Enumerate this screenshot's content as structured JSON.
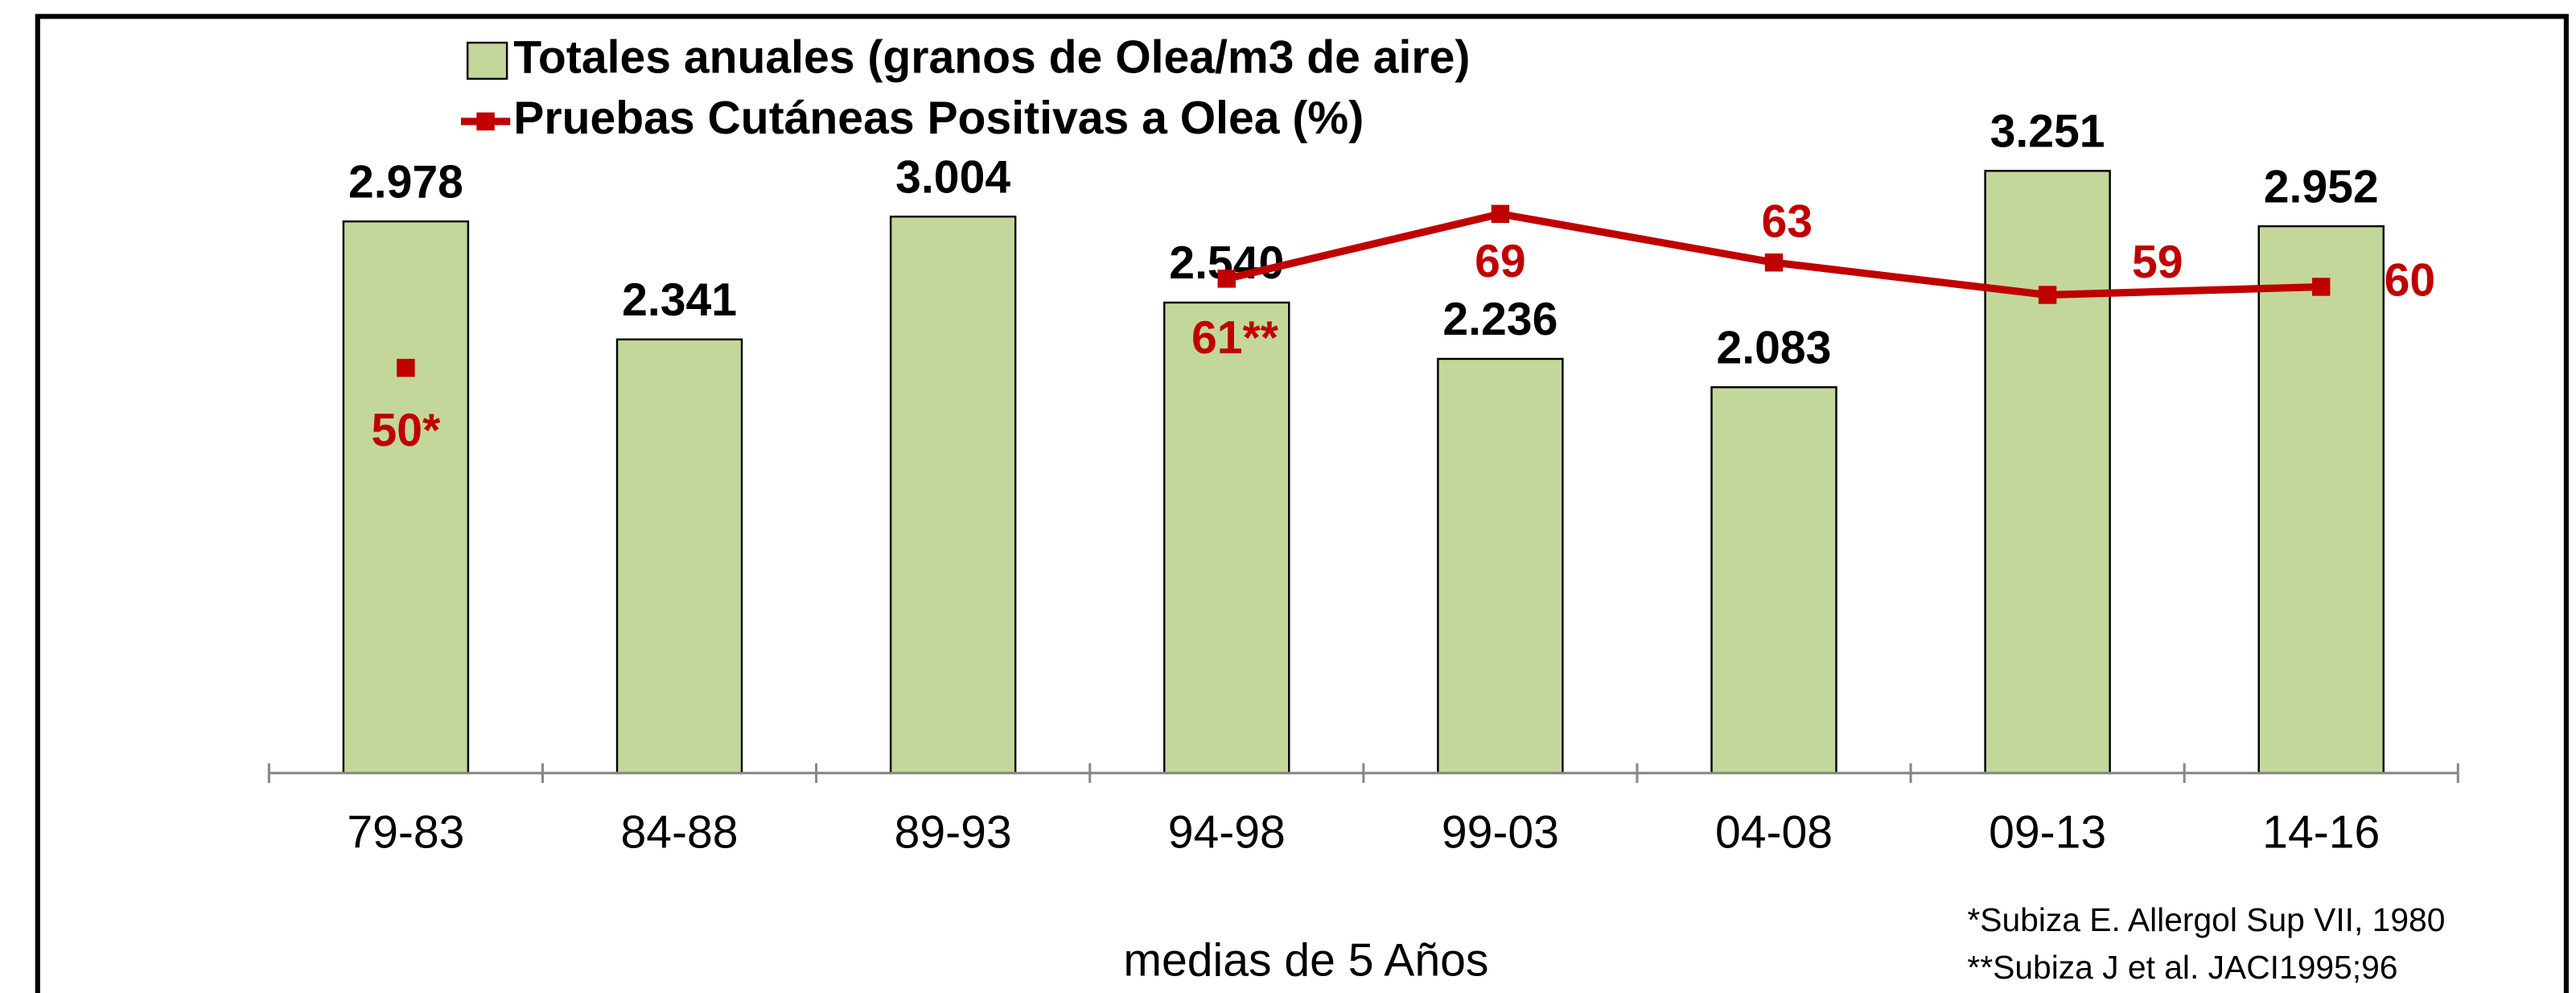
{
  "chart_data": {
    "type": "bar",
    "categories": [
      "79-83",
      "84-88",
      "89-93",
      "94-98",
      "99-03",
      "04-08",
      "09-13",
      "14-16"
    ],
    "x_label": "medias de 5 Años",
    "series": [
      {
        "name": "Totales anuales (granos de Olea/m3 de aire)",
        "type": "bar",
        "color": "#c4d79b",
        "values": [
          2978,
          2341,
          3004,
          2540,
          2236,
          2083,
          3251,
          2952
        ],
        "value_labels": [
          "2.978",
          "2.341",
          "3.004",
          "2.540",
          "2.236",
          "2.083",
          "3.251",
          "2.952"
        ]
      },
      {
        "name": "Pruebas Cutáneas Positivas a Olea (%)",
        "type": "line",
        "axis": "y2",
        "color": "#c00000",
        "values": [
          50,
          null,
          null,
          61,
          69,
          63,
          59,
          60
        ],
        "value_labels": [
          "50*",
          null,
          null,
          "61**",
          "69",
          "63",
          "59",
          "60"
        ]
      }
    ],
    "ylim": [
      0,
      3500
    ],
    "y2lim": [
      0,
      80
    ],
    "notes": [
      "*Subiza E. Allergol Sup VII, 1980",
      "**Subiza J et al. JACI1995;96"
    ]
  }
}
